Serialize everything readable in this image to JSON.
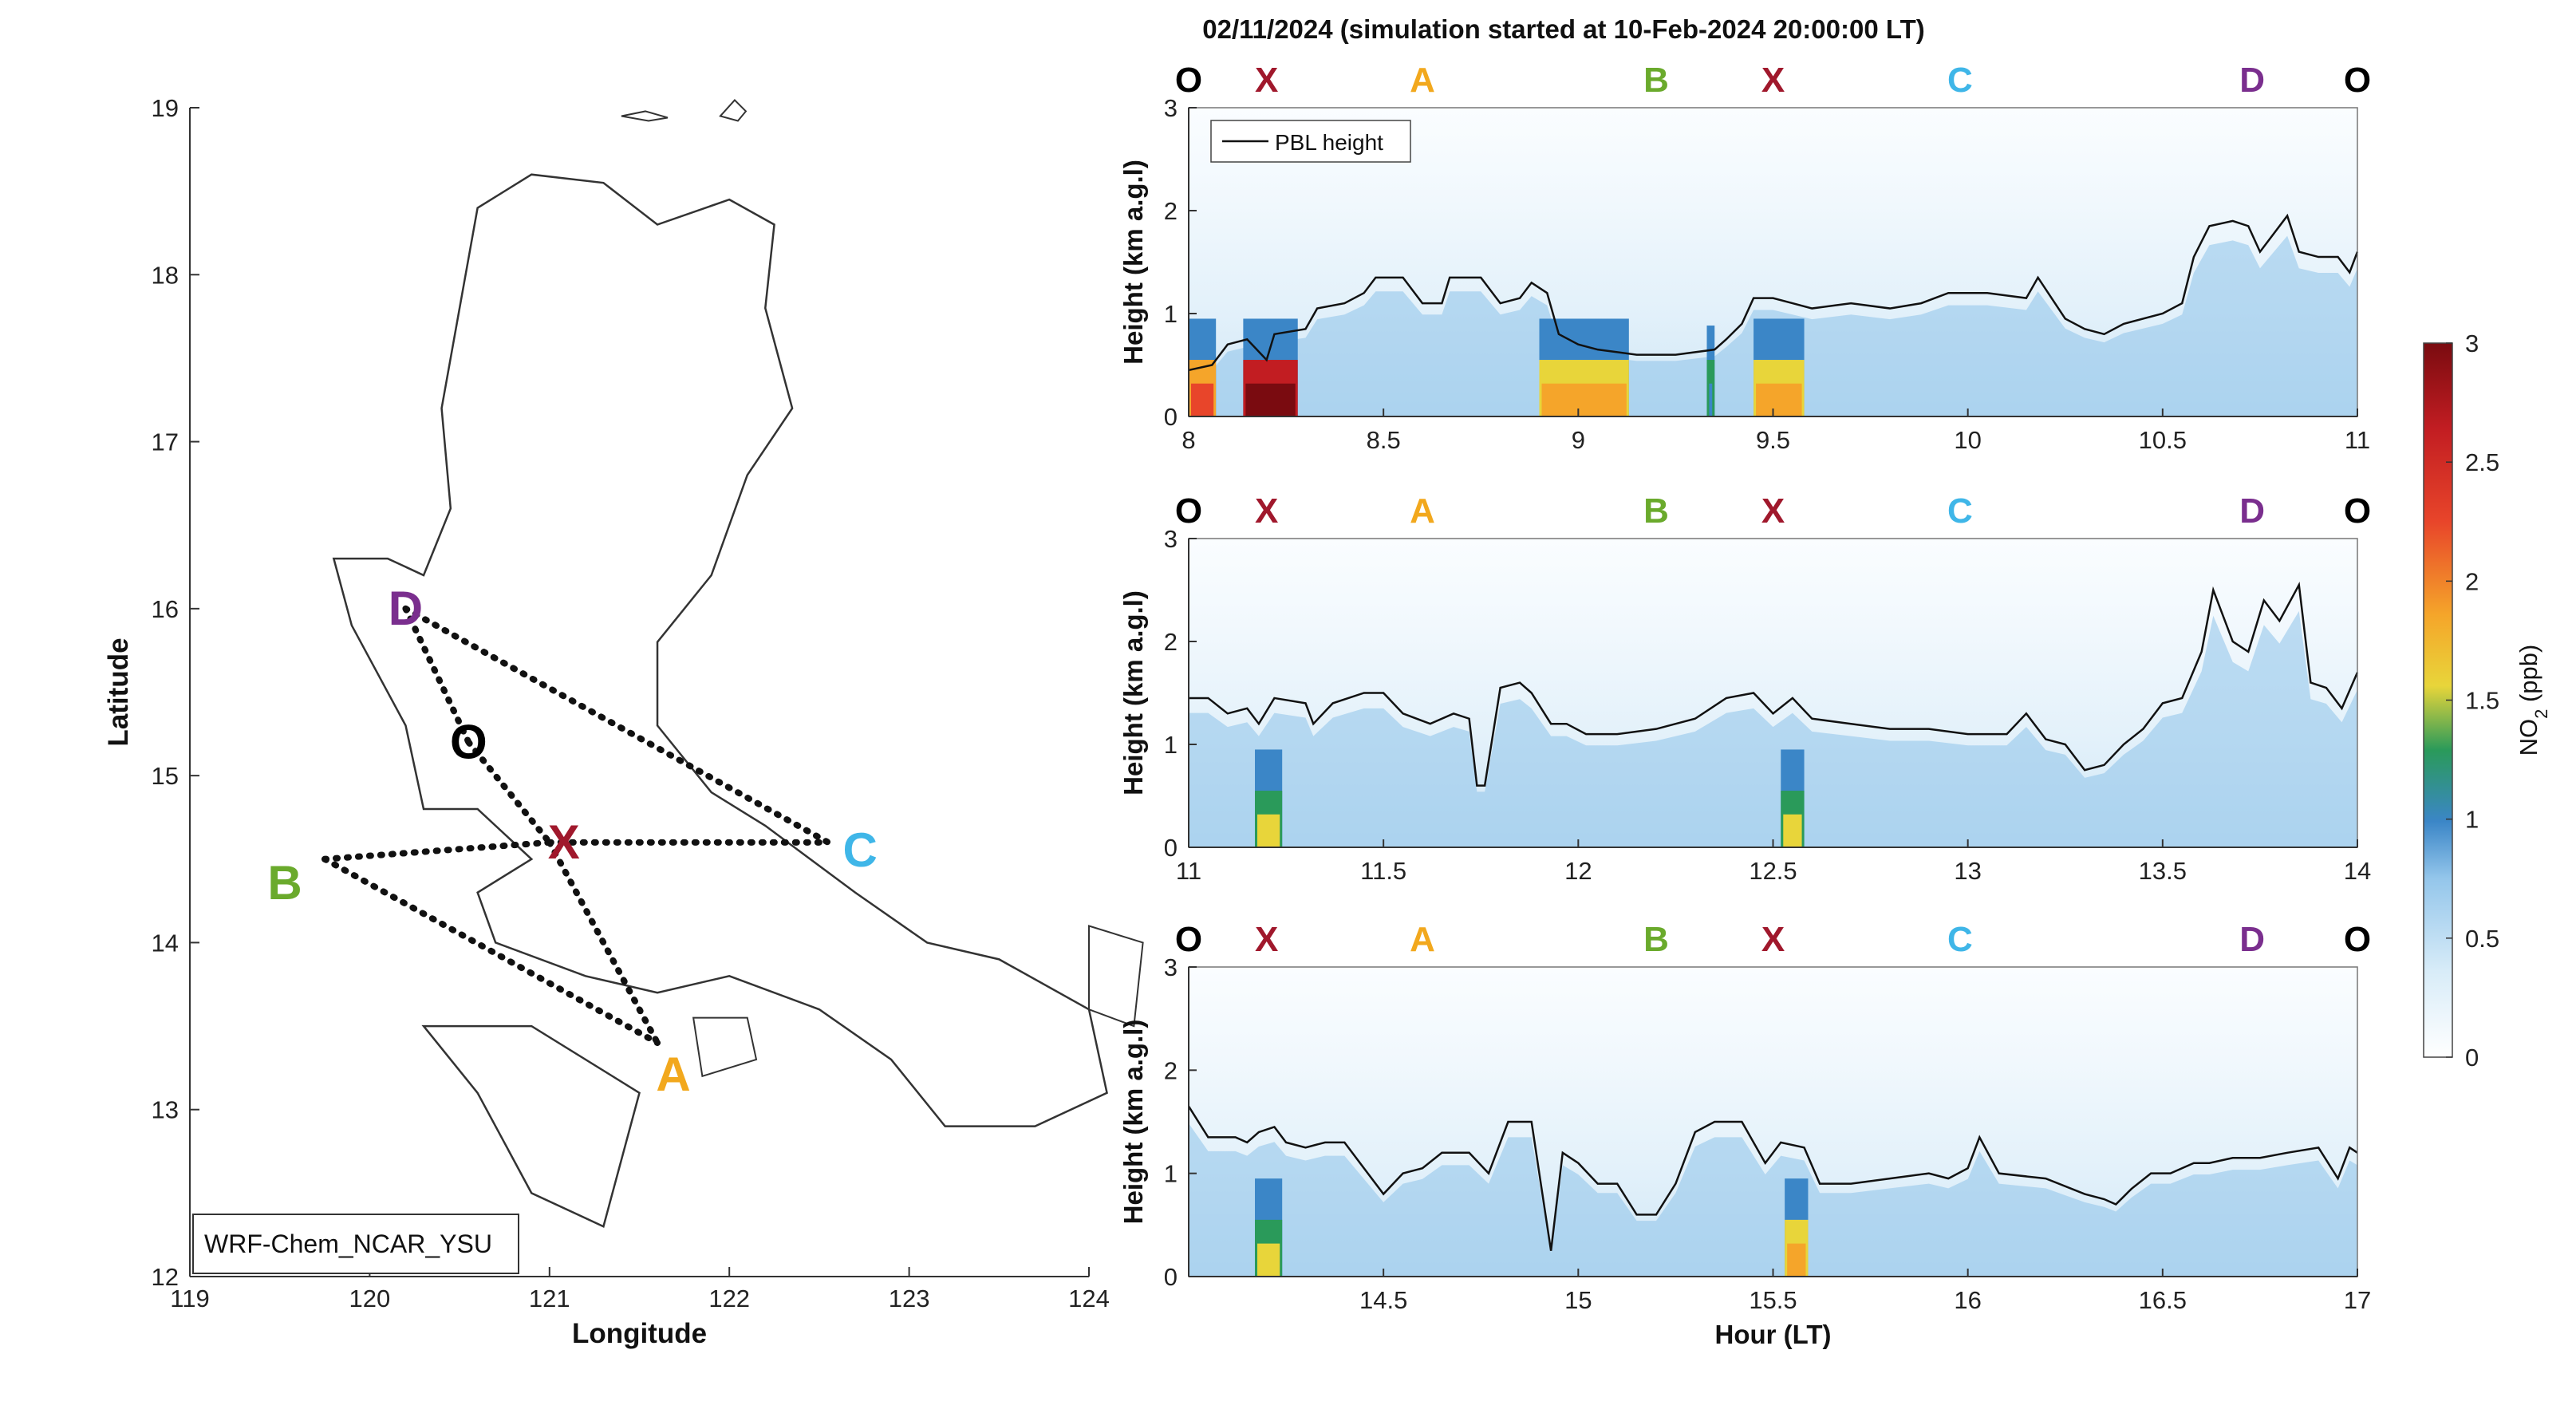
{
  "figure": {
    "title": "02/11/2024 (simulation started at 10-Feb-2024 20:00:00 LT)"
  },
  "colors": {
    "O": "#000000",
    "X": "#a0182c",
    "A": "#f2a81d",
    "B": "#6aaa2c",
    "C": "#3fb6e8",
    "D": "#7a2e8e"
  },
  "chart_data": [
    {
      "type": "map",
      "xlabel": "Longitude",
      "ylabel": "Latitude",
      "xlim": [
        119,
        124
      ],
      "ylim": [
        12,
        19
      ],
      "xticks": [
        "119",
        "120",
        "121",
        "122",
        "123",
        "124"
      ],
      "yticks": [
        "12",
        "13",
        "14",
        "15",
        "16",
        "17",
        "18",
        "19"
      ],
      "annotation_box": "WRF-Chem_NCAR_YSU",
      "points": [
        {
          "label": "D",
          "lon": 120.2,
          "lat": 16.0
        },
        {
          "label": "O",
          "lon": 120.55,
          "lat": 15.2
        },
        {
          "label": "X",
          "lon": 121.0,
          "lat": 14.6
        },
        {
          "label": "B",
          "lon": 119.75,
          "lat": 14.5
        },
        {
          "label": "C",
          "lon": 122.55,
          "lat": 14.6
        },
        {
          "label": "A",
          "lon": 121.6,
          "lat": 13.4
        }
      ],
      "route": [
        [
          "B",
          "X"
        ],
        [
          "X",
          "C"
        ],
        [
          "B",
          "A"
        ],
        [
          "X",
          "A"
        ],
        [
          "D",
          "O"
        ],
        [
          "O",
          "X"
        ],
        [
          "D",
          "C"
        ]
      ]
    },
    {
      "type": "heatmap",
      "xlabel": "",
      "ylabel": "Height (km a.g.l)",
      "xlim": [
        8,
        11
      ],
      "ylim": [
        0,
        3
      ],
      "xticks": [
        "8",
        "8.5",
        "9",
        "9.5",
        "10",
        "10.5",
        "11"
      ],
      "yticks": [
        "0",
        "1",
        "2",
        "3"
      ],
      "legend": "PBL height",
      "waypoints": [
        {
          "label": "O",
          "hour": 8.0
        },
        {
          "label": "X",
          "hour": 8.2
        },
        {
          "label": "A",
          "hour": 8.6
        },
        {
          "label": "B",
          "hour": 9.2
        },
        {
          "label": "X",
          "hour": 9.5
        },
        {
          "label": "C",
          "hour": 9.98
        },
        {
          "label": "D",
          "hour": 10.73
        },
        {
          "label": "O",
          "hour": 11.0
        }
      ],
      "pbl": [
        [
          8.0,
          0.45
        ],
        [
          8.06,
          0.5
        ],
        [
          8.1,
          0.7
        ],
        [
          8.15,
          0.75
        ],
        [
          8.2,
          0.55
        ],
        [
          8.22,
          0.8
        ],
        [
          8.3,
          0.85
        ],
        [
          8.33,
          1.05
        ],
        [
          8.4,
          1.1
        ],
        [
          8.45,
          1.2
        ],
        [
          8.48,
          1.35
        ],
        [
          8.55,
          1.35
        ],
        [
          8.6,
          1.1
        ],
        [
          8.65,
          1.1
        ],
        [
          8.67,
          1.35
        ],
        [
          8.75,
          1.35
        ],
        [
          8.8,
          1.1
        ],
        [
          8.85,
          1.15
        ],
        [
          8.88,
          1.3
        ],
        [
          8.92,
          1.2
        ],
        [
          8.95,
          0.8
        ],
        [
          9.0,
          0.7
        ],
        [
          9.05,
          0.65
        ],
        [
          9.15,
          0.6
        ],
        [
          9.25,
          0.6
        ],
        [
          9.35,
          0.65
        ],
        [
          9.38,
          0.75
        ],
        [
          9.42,
          0.9
        ],
        [
          9.45,
          1.15
        ],
        [
          9.5,
          1.15
        ],
        [
          9.55,
          1.1
        ],
        [
          9.6,
          1.05
        ],
        [
          9.7,
          1.1
        ],
        [
          9.8,
          1.05
        ],
        [
          9.88,
          1.1
        ],
        [
          9.95,
          1.2
        ],
        [
          10.05,
          1.2
        ],
        [
          10.15,
          1.15
        ],
        [
          10.18,
          1.35
        ],
        [
          10.25,
          0.95
        ],
        [
          10.3,
          0.85
        ],
        [
          10.35,
          0.8
        ],
        [
          10.4,
          0.9
        ],
        [
          10.5,
          1.0
        ],
        [
          10.55,
          1.1
        ],
        [
          10.58,
          1.55
        ],
        [
          10.62,
          1.85
        ],
        [
          10.68,
          1.9
        ],
        [
          10.72,
          1.85
        ],
        [
          10.75,
          1.6
        ],
        [
          10.78,
          1.75
        ],
        [
          10.82,
          1.95
        ],
        [
          10.85,
          1.6
        ],
        [
          10.9,
          1.55
        ],
        [
          10.95,
          1.55
        ],
        [
          10.98,
          1.4
        ],
        [
          11.0,
          1.6
        ]
      ],
      "no2_segments": [
        {
          "start": 8.0,
          "end": 8.07,
          "ppb": 2.1
        },
        {
          "start": 8.14,
          "end": 8.28,
          "ppb": 3.0
        },
        {
          "start": 8.9,
          "end": 9.13,
          "ppb": 1.7
        },
        {
          "start": 9.33,
          "end": 9.35,
          "ppb": 1.0
        },
        {
          "start": 9.45,
          "end": 9.58,
          "ppb": 1.8
        }
      ]
    },
    {
      "type": "heatmap",
      "xlabel": "",
      "ylabel": "Height (km a.g.l)",
      "xlim": [
        11,
        14
      ],
      "ylim": [
        0,
        3
      ],
      "xticks": [
        "11",
        "11.5",
        "12",
        "12.5",
        "13",
        "13.5",
        "14"
      ],
      "yticks": [
        "0",
        "1",
        "2",
        "3"
      ],
      "waypoints": [
        {
          "label": "O",
          "hour": 11.0
        },
        {
          "label": "X",
          "hour": 11.2
        },
        {
          "label": "A",
          "hour": 11.6
        },
        {
          "label": "B",
          "hour": 12.2
        },
        {
          "label": "X",
          "hour": 12.5
        },
        {
          "label": "C",
          "hour": 12.98
        },
        {
          "label": "D",
          "hour": 13.73
        },
        {
          "label": "O",
          "hour": 14.0
        }
      ],
      "pbl": [
        [
          11.0,
          1.45
        ],
        [
          11.05,
          1.45
        ],
        [
          11.1,
          1.3
        ],
        [
          11.15,
          1.35
        ],
        [
          11.18,
          1.2
        ],
        [
          11.22,
          1.45
        ],
        [
          11.3,
          1.4
        ],
        [
          11.32,
          1.2
        ],
        [
          11.37,
          1.4
        ],
        [
          11.45,
          1.5
        ],
        [
          11.5,
          1.5
        ],
        [
          11.55,
          1.3
        ],
        [
          11.62,
          1.2
        ],
        [
          11.68,
          1.3
        ],
        [
          11.72,
          1.25
        ],
        [
          11.74,
          0.6
        ],
        [
          11.76,
          0.6
        ],
        [
          11.8,
          1.55
        ],
        [
          11.85,
          1.6
        ],
        [
          11.88,
          1.5
        ],
        [
          11.93,
          1.2
        ],
        [
          11.97,
          1.2
        ],
        [
          12.02,
          1.1
        ],
        [
          12.1,
          1.1
        ],
        [
          12.2,
          1.15
        ],
        [
          12.3,
          1.25
        ],
        [
          12.38,
          1.45
        ],
        [
          12.45,
          1.5
        ],
        [
          12.5,
          1.3
        ],
        [
          12.55,
          1.45
        ],
        [
          12.6,
          1.25
        ],
        [
          12.7,
          1.2
        ],
        [
          12.8,
          1.15
        ],
        [
          12.9,
          1.15
        ],
        [
          13.0,
          1.1
        ],
        [
          13.1,
          1.1
        ],
        [
          13.15,
          1.3
        ],
        [
          13.2,
          1.05
        ],
        [
          13.25,
          1.0
        ],
        [
          13.3,
          0.75
        ],
        [
          13.35,
          0.8
        ],
        [
          13.4,
          1.0
        ],
        [
          13.45,
          1.15
        ],
        [
          13.5,
          1.4
        ],
        [
          13.55,
          1.45
        ],
        [
          13.6,
          1.9
        ],
        [
          13.63,
          2.5
        ],
        [
          13.68,
          2.0
        ],
        [
          13.72,
          1.9
        ],
        [
          13.76,
          2.4
        ],
        [
          13.8,
          2.2
        ],
        [
          13.85,
          2.55
        ],
        [
          13.88,
          1.6
        ],
        [
          13.92,
          1.55
        ],
        [
          13.96,
          1.35
        ],
        [
          14.0,
          1.7
        ]
      ],
      "no2_segments": [
        {
          "start": 11.17,
          "end": 11.24,
          "ppb": 1.4
        },
        {
          "start": 12.52,
          "end": 12.58,
          "ppb": 1.5
        }
      ]
    },
    {
      "type": "heatmap",
      "xlabel": "Hour (LT)",
      "ylabel": "Height (km a.g.l)",
      "xlim": [
        14,
        17
      ],
      "ylim": [
        0,
        3
      ],
      "xticks": [
        "14.5",
        "15",
        "15.5",
        "16",
        "16.5",
        "17"
      ],
      "yticks": [
        "0",
        "1",
        "2",
        "3"
      ],
      "waypoints": [
        {
          "label": "O",
          "hour": 14.0
        },
        {
          "label": "X",
          "hour": 14.2
        },
        {
          "label": "A",
          "hour": 14.6
        },
        {
          "label": "B",
          "hour": 15.2
        },
        {
          "label": "X",
          "hour": 15.5
        },
        {
          "label": "C",
          "hour": 15.98
        },
        {
          "label": "D",
          "hour": 16.73
        },
        {
          "label": "O",
          "hour": 17.0
        }
      ],
      "pbl": [
        [
          14.0,
          1.65
        ],
        [
          14.05,
          1.35
        ],
        [
          14.12,
          1.35
        ],
        [
          14.15,
          1.3
        ],
        [
          14.18,
          1.4
        ],
        [
          14.22,
          1.45
        ],
        [
          14.25,
          1.3
        ],
        [
          14.3,
          1.25
        ],
        [
          14.35,
          1.3
        ],
        [
          14.4,
          1.3
        ],
        [
          14.45,
          1.05
        ],
        [
          14.5,
          0.8
        ],
        [
          14.55,
          1.0
        ],
        [
          14.6,
          1.05
        ],
        [
          14.65,
          1.2
        ],
        [
          14.72,
          1.2
        ],
        [
          14.77,
          1.0
        ],
        [
          14.82,
          1.5
        ],
        [
          14.88,
          1.5
        ],
        [
          14.93,
          0.25
        ],
        [
          14.96,
          1.2
        ],
        [
          15.0,
          1.1
        ],
        [
          15.05,
          0.9
        ],
        [
          15.1,
          0.9
        ],
        [
          15.15,
          0.6
        ],
        [
          15.2,
          0.6
        ],
        [
          15.25,
          0.9
        ],
        [
          15.3,
          1.4
        ],
        [
          15.35,
          1.5
        ],
        [
          15.42,
          1.5
        ],
        [
          15.48,
          1.1
        ],
        [
          15.52,
          1.3
        ],
        [
          15.58,
          1.25
        ],
        [
          15.62,
          0.9
        ],
        [
          15.7,
          0.9
        ],
        [
          15.8,
          0.95
        ],
        [
          15.9,
          1.0
        ],
        [
          15.95,
          0.95
        ],
        [
          16.0,
          1.05
        ],
        [
          16.03,
          1.35
        ],
        [
          16.08,
          1.0
        ],
        [
          16.2,
          0.95
        ],
        [
          16.3,
          0.8
        ],
        [
          16.35,
          0.75
        ],
        [
          16.38,
          0.7
        ],
        [
          16.42,
          0.85
        ],
        [
          16.47,
          1.0
        ],
        [
          16.52,
          1.0
        ],
        [
          16.58,
          1.1
        ],
        [
          16.62,
          1.1
        ],
        [
          16.68,
          1.15
        ],
        [
          16.75,
          1.15
        ],
        [
          16.82,
          1.2
        ],
        [
          16.9,
          1.25
        ],
        [
          16.95,
          0.95
        ],
        [
          16.98,
          1.25
        ],
        [
          17.0,
          1.2
        ]
      ],
      "no2_segments": [
        {
          "start": 14.17,
          "end": 14.24,
          "ppb": 1.5
        },
        {
          "start": 15.53,
          "end": 15.59,
          "ppb": 1.8
        }
      ]
    },
    {
      "type": "colorbar",
      "label": "NO2 (ppb)",
      "label_main": "NO",
      "label_sub": "2",
      "label_unit": "(ppb)",
      "range": [
        0,
        3
      ],
      "ticks": [
        "0",
        "0.5",
        "1",
        "1.5",
        "2",
        "2.5",
        "3"
      ]
    }
  ]
}
